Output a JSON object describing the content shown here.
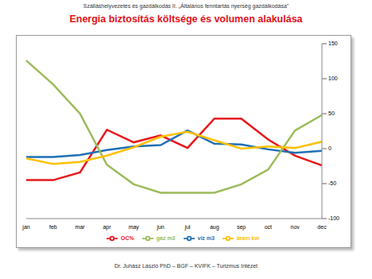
{
  "header": "Szálláshelyvezetés és gazdálkodás II. „Általános fenntartás nyerség gazdálkodása\"",
  "footer": "Dr. Juhász László PhD – BGF – KVIFK – Turizmus Intézet",
  "chart_data": {
    "type": "line",
    "title": "Energia biztosítás költsége és volumen alakulása",
    "categories": [
      "jan",
      "feb",
      "mar",
      "apr",
      "may",
      "jun",
      "jul",
      "aug",
      "sep",
      "oct",
      "nov",
      "dec"
    ],
    "series": [
      {
        "name": "OC%",
        "color": "#e8171b",
        "values": [
          -45,
          -45,
          -34,
          27,
          9,
          19,
          1,
          43,
          43,
          13,
          -10,
          -24
        ]
      },
      {
        "name": "víz m3",
        "color": "#1f6fb5",
        "values": [
          -12,
          -12,
          -9,
          -2,
          3,
          5,
          26,
          7,
          6,
          -1,
          -6,
          -3
        ]
      },
      {
        "name": "gáz m3",
        "color": "#9bbb59",
        "values": [
          126,
          92,
          50,
          -23,
          -51,
          -63,
          -63,
          -63,
          -51,
          -30,
          26,
          48
        ]
      },
      {
        "name": "áram kw",
        "color": "#ffc000",
        "values": [
          -14,
          -22,
          -19,
          -10,
          2,
          17,
          24,
          12,
          0,
          3,
          1,
          10
        ]
      }
    ],
    "ylim": [
      -100,
      150
    ],
    "yticks": [
      -100,
      -50,
      0,
      50,
      100,
      150
    ],
    "grid": false,
    "legend": "bottom"
  }
}
